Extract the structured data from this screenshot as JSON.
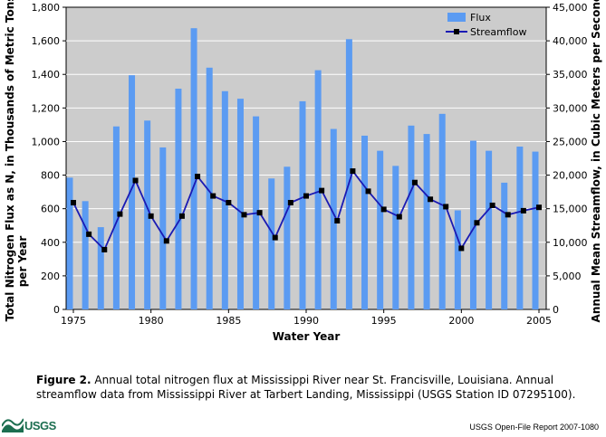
{
  "chart_data": {
    "type": "bar",
    "xlabel": "Water Year",
    "ylabel_left": "Total Nitrogen Flux as N, in Thousands of Metric Tons per Year",
    "ylabel_right": "Annual Mean Streamflow, in Cubic Meters per Second",
    "x_ticks": [
      "1975",
      "1980",
      "1985",
      "1990",
      "1995",
      "2000",
      "2005"
    ],
    "y_left_ticks": [
      "0",
      "200",
      "400",
      "600",
      "800",
      "1,000",
      "1,200",
      "1,400",
      "1,600",
      "1,800"
    ],
    "y_right_ticks": [
      "0",
      "5,000",
      "10,000",
      "15,000",
      "20,000",
      "25,000",
      "30,000",
      "35,000",
      "40,000",
      "45,000"
    ],
    "ylim_left": [
      0,
      1800
    ],
    "ylim_right": [
      0,
      45000
    ],
    "grid": "horizontal",
    "legend_position": "top-right",
    "years": [
      1975,
      1976,
      1977,
      1978,
      1979,
      1980,
      1981,
      1982,
      1983,
      1984,
      1985,
      1986,
      1987,
      1988,
      1989,
      1990,
      1991,
      1992,
      1993,
      1994,
      1995,
      1996,
      1997,
      1998,
      1999,
      2000,
      2001,
      2002,
      2003,
      2004,
      2005
    ],
    "series": [
      {
        "name": "Flux",
        "kind": "bar",
        "axis": "left",
        "color": "#5b9bf2",
        "values": [
          785,
          645,
          490,
          1090,
          1395,
          1125,
          965,
          1315,
          1675,
          1440,
          1300,
          1255,
          1150,
          780,
          850,
          1240,
          1425,
          1075,
          1610,
          1035,
          945,
          855,
          1095,
          1045,
          1165,
          590,
          1005,
          945,
          755,
          970,
          940
        ]
      },
      {
        "name": "Streamflow",
        "kind": "line",
        "axis": "right",
        "color": "#1a1ab4",
        "marker_color": "#000000",
        "values": [
          15900,
          11200,
          8900,
          14200,
          19200,
          13900,
          10200,
          13900,
          19800,
          16900,
          15900,
          14100,
          14400,
          10700,
          15900,
          16900,
          17700,
          13200,
          20600,
          17600,
          14900,
          13800,
          18900,
          16400,
          15300,
          9100,
          12900,
          15500,
          14100,
          14700,
          15200
        ]
      }
    ]
  },
  "caption": {
    "label": "Figure 2.",
    "text": "Annual total nitrogen flux at Mississippi River near St. Francisville, Louisiana. Annual streamflow data from Mississippi River at Tarbert Landing, Mississippi (USGS Station ID 07295100)."
  },
  "footer": {
    "logo_text": "USGS",
    "report": "USGS Open-File Report 2007-1080"
  }
}
